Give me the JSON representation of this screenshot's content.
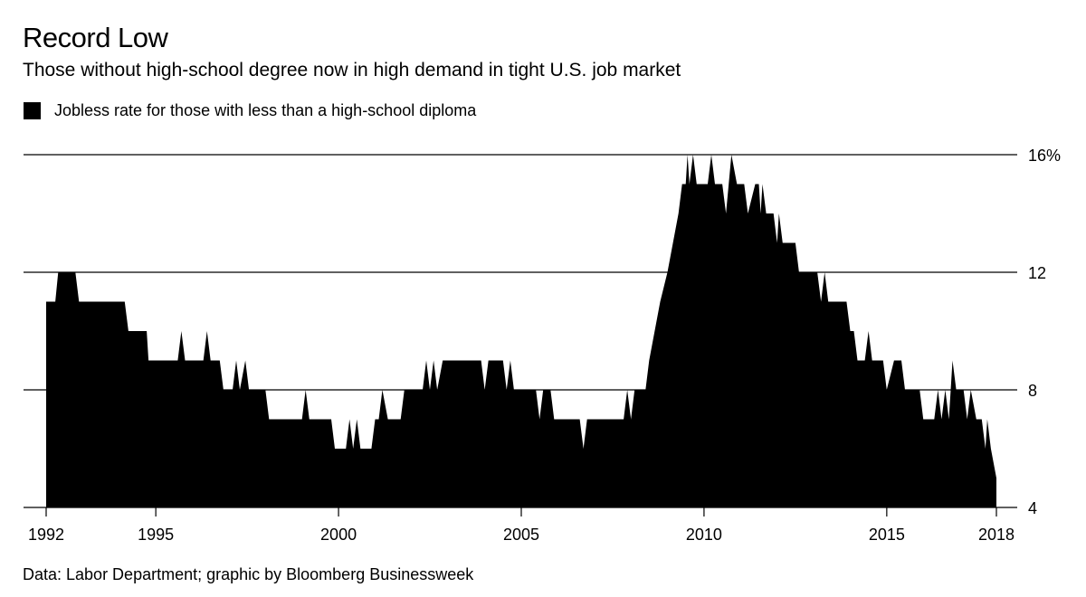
{
  "header": {
    "title": "Record Low",
    "subtitle": "Those without high-school degree now in high demand in tight U.S. job market"
  },
  "legend": {
    "label": "Jobless rate for those with less than a high-school diploma",
    "color": "#000000"
  },
  "footer": {
    "source": "Data: Labor Department; graphic by Bloomberg Businessweek"
  },
  "chart_data": {
    "type": "area",
    "title": "Record Low",
    "subtitle": "Those without high-school degree now in high demand in tight U.S. job market",
    "xlabel": "",
    "ylabel": "",
    "ylim": [
      4,
      16
    ],
    "xlim": [
      1992,
      2018
    ],
    "y_ticks": [
      4,
      8,
      12,
      16
    ],
    "y_tick_labels": [
      "4",
      "8",
      "12",
      "16%"
    ],
    "x_ticks": [
      1992,
      1995,
      2000,
      2005,
      2010,
      2015,
      2018
    ],
    "x_tick_labels": [
      "1992",
      "1995",
      "2000",
      "2005",
      "2010",
      "2015",
      "2018"
    ],
    "grid": "horizontal",
    "legend_position": "top-left",
    "series": [
      {
        "name": "Jobless rate for those with less than a high-school diploma",
        "color": "#000000",
        "points": [
          [
            1992.0,
            11
          ],
          [
            1992.25,
            11
          ],
          [
            1992.33,
            12
          ],
          [
            1992.8,
            12
          ],
          [
            1992.9,
            11
          ],
          [
            1993.4,
            11
          ],
          [
            1993.5,
            11
          ],
          [
            1993.6,
            11
          ],
          [
            1994.0,
            11
          ],
          [
            1994.15,
            11
          ],
          [
            1994.25,
            10
          ],
          [
            1994.75,
            10
          ],
          [
            1994.8,
            9
          ],
          [
            1995.2,
            9
          ],
          [
            1995.3,
            9
          ],
          [
            1995.6,
            9
          ],
          [
            1995.7,
            10
          ],
          [
            1995.8,
            9
          ],
          [
            1996.3,
            9
          ],
          [
            1996.4,
            10
          ],
          [
            1996.5,
            9
          ],
          [
            1996.75,
            9
          ],
          [
            1996.85,
            8
          ],
          [
            1997.1,
            8
          ],
          [
            1997.2,
            9
          ],
          [
            1997.3,
            8
          ],
          [
            1997.45,
            9
          ],
          [
            1997.55,
            8
          ],
          [
            1997.9,
            8
          ],
          [
            1998.0,
            8
          ],
          [
            1998.1,
            7
          ],
          [
            1999.0,
            7
          ],
          [
            1999.1,
            8
          ],
          [
            1999.2,
            7
          ],
          [
            1999.8,
            7
          ],
          [
            1999.9,
            6
          ],
          [
            2000.2,
            6
          ],
          [
            2000.3,
            7
          ],
          [
            2000.4,
            6
          ],
          [
            2000.5,
            7
          ],
          [
            2000.6,
            6
          ],
          [
            2000.9,
            6
          ],
          [
            2001.0,
            7
          ],
          [
            2001.1,
            7
          ],
          [
            2001.2,
            8
          ],
          [
            2001.35,
            7
          ],
          [
            2001.7,
            7
          ],
          [
            2001.8,
            8
          ],
          [
            2002.3,
            8
          ],
          [
            2002.4,
            9
          ],
          [
            2002.5,
            8
          ],
          [
            2002.6,
            9
          ],
          [
            2002.7,
            8
          ],
          [
            2002.85,
            9
          ],
          [
            2003.9,
            9
          ],
          [
            2004.0,
            8
          ],
          [
            2004.1,
            9
          ],
          [
            2004.5,
            9
          ],
          [
            2004.6,
            8
          ],
          [
            2004.7,
            9
          ],
          [
            2004.8,
            8
          ],
          [
            2005.4,
            8
          ],
          [
            2005.5,
            7
          ],
          [
            2005.6,
            8
          ],
          [
            2005.8,
            8
          ],
          [
            2005.9,
            7
          ],
          [
            2006.6,
            7
          ],
          [
            2006.7,
            6
          ],
          [
            2006.8,
            7
          ],
          [
            2007.8,
            7
          ],
          [
            2007.9,
            8
          ],
          [
            2008.0,
            7
          ],
          [
            2008.1,
            8
          ],
          [
            2008.3,
            8
          ],
          [
            2008.4,
            8
          ],
          [
            2008.5,
            9
          ],
          [
            2008.65,
            10
          ],
          [
            2008.8,
            11
          ],
          [
            2009.0,
            12
          ],
          [
            2009.15,
            13
          ],
          [
            2009.3,
            14
          ],
          [
            2009.4,
            15
          ],
          [
            2009.5,
            15
          ],
          [
            2009.55,
            16
          ],
          [
            2009.6,
            15
          ],
          [
            2009.7,
            16
          ],
          [
            2009.8,
            15
          ],
          [
            2010.1,
            15
          ],
          [
            2010.2,
            16
          ],
          [
            2010.3,
            15
          ],
          [
            2010.5,
            15
          ],
          [
            2010.6,
            14
          ],
          [
            2010.75,
            16
          ],
          [
            2010.9,
            15
          ],
          [
            2011.1,
            15
          ],
          [
            2011.2,
            14
          ],
          [
            2011.4,
            15
          ],
          [
            2011.5,
            15
          ],
          [
            2011.55,
            14
          ],
          [
            2011.6,
            15
          ],
          [
            2011.7,
            14
          ],
          [
            2011.9,
            14
          ],
          [
            2012.0,
            13
          ],
          [
            2012.05,
            14
          ],
          [
            2012.15,
            13
          ],
          [
            2012.5,
            13
          ],
          [
            2012.6,
            12
          ],
          [
            2013.1,
            12
          ],
          [
            2013.2,
            11
          ],
          [
            2013.3,
            12
          ],
          [
            2013.4,
            11
          ],
          [
            2013.9,
            11
          ],
          [
            2014.0,
            10
          ],
          [
            2014.1,
            10
          ],
          [
            2014.2,
            9
          ],
          [
            2014.4,
            9
          ],
          [
            2014.5,
            10
          ],
          [
            2014.6,
            9
          ],
          [
            2014.8,
            9
          ],
          [
            2014.9,
            9
          ],
          [
            2015.0,
            8
          ],
          [
            2015.2,
            9
          ],
          [
            2015.4,
            9
          ],
          [
            2015.5,
            8
          ],
          [
            2015.9,
            8
          ],
          [
            2016.0,
            7
          ],
          [
            2016.3,
            7
          ],
          [
            2016.4,
            8
          ],
          [
            2016.5,
            7
          ],
          [
            2016.6,
            8
          ],
          [
            2016.7,
            7
          ],
          [
            2016.8,
            9
          ],
          [
            2016.9,
            8
          ],
          [
            2017.1,
            8
          ],
          [
            2017.2,
            7
          ],
          [
            2017.3,
            8
          ],
          [
            2017.45,
            7
          ],
          [
            2017.6,
            7
          ],
          [
            2017.7,
            6
          ],
          [
            2017.75,
            7
          ],
          [
            2017.85,
            6
          ],
          [
            2018.0,
            5
          ]
        ]
      }
    ]
  }
}
